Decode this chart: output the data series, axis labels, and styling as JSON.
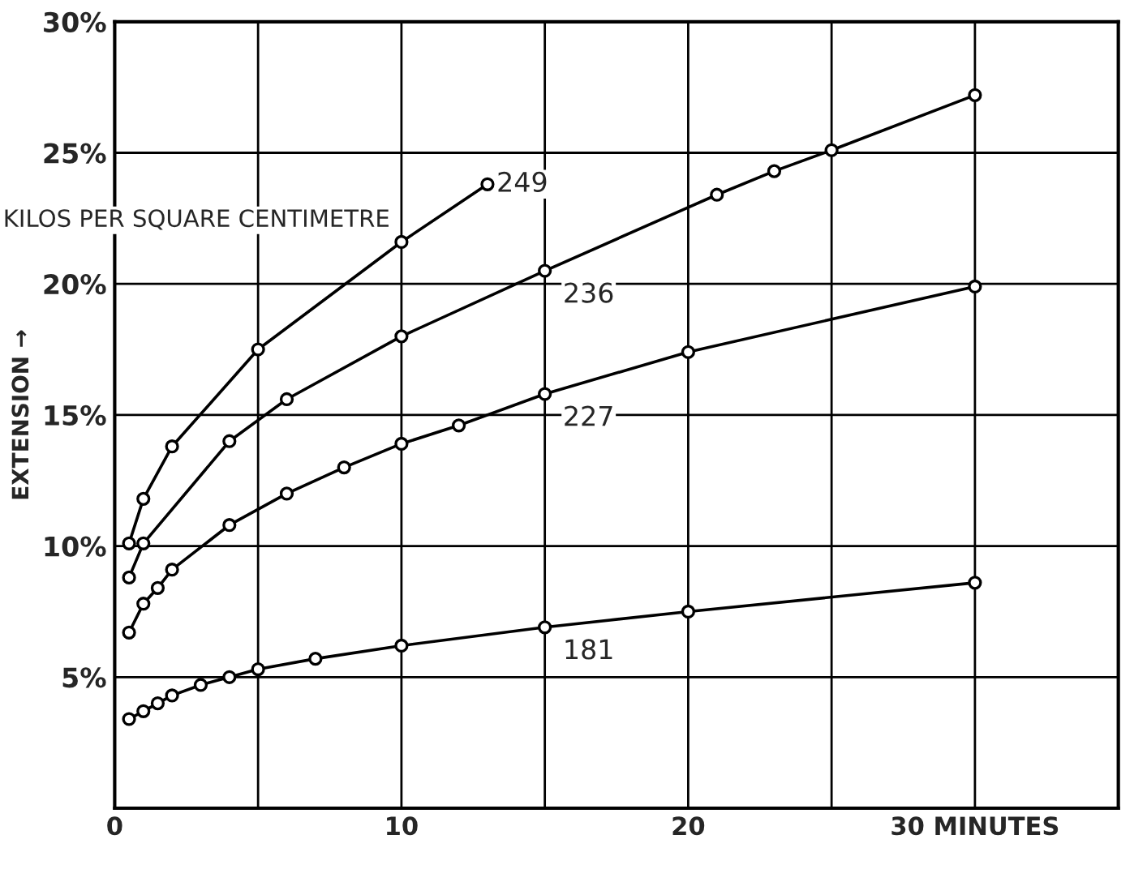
{
  "chart_data": {
    "type": "line",
    "ylabel": "EXTENSION →",
    "marker": "circle",
    "line_style": "solid",
    "grid": true,
    "legend": false,
    "xlim": [
      0,
      35
    ],
    "xticks": [
      {
        "value": 0,
        "label": "0"
      },
      {
        "value": 5,
        "label": null
      },
      {
        "value": 10,
        "label": "10"
      },
      {
        "value": 15,
        "label": null
      },
      {
        "value": 20,
        "label": "20"
      },
      {
        "value": 25,
        "label": null
      },
      {
        "value": 30,
        "label": "30 MINUTES"
      }
    ],
    "ylim": [
      0,
      30
    ],
    "yticks": [
      {
        "value": 5,
        "label": "5%"
      },
      {
        "value": 10,
        "label": "10%"
      },
      {
        "value": 15,
        "label": "15%"
      },
      {
        "value": 20,
        "label": "20%"
      },
      {
        "value": 25,
        "label": "25%"
      },
      {
        "value": 30,
        "label": "30%"
      }
    ],
    "series": [
      {
        "name": "249",
        "color": "#000000",
        "x": [
          0.5,
          1,
          2,
          5,
          10,
          13
        ],
        "values": [
          10.1,
          11.8,
          13.8,
          17.5,
          21.6,
          23.8
        ]
      },
      {
        "name": "236",
        "color": "#000000",
        "x": [
          0.5,
          1,
          4,
          6,
          10,
          15,
          21,
          23,
          25,
          30
        ],
        "values": [
          8.8,
          10.1,
          14.0,
          15.6,
          18.0,
          20.5,
          23.4,
          24.3,
          25.1,
          27.2
        ]
      },
      {
        "name": "227",
        "color": "#000000",
        "x": [
          0.5,
          1,
          1.5,
          2,
          4,
          6,
          8,
          10,
          12,
          15,
          20,
          30
        ],
        "values": [
          6.7,
          7.8,
          8.4,
          9.1,
          10.8,
          12.0,
          13.0,
          13.9,
          14.6,
          15.8,
          17.4,
          19.9
        ]
      },
      {
        "name": "181",
        "color": "#000000",
        "x": [
          0.5,
          1,
          1.5,
          2,
          3,
          4,
          5,
          7,
          10,
          15,
          20,
          30
        ],
        "values": [
          3.4,
          3.7,
          4.0,
          4.3,
          4.7,
          5.0,
          5.3,
          5.7,
          6.2,
          6.9,
          7.5,
          8.6
        ]
      }
    ],
    "annotations": [
      "KILOS PER SQUARE CENTIMETRE"
    ]
  }
}
